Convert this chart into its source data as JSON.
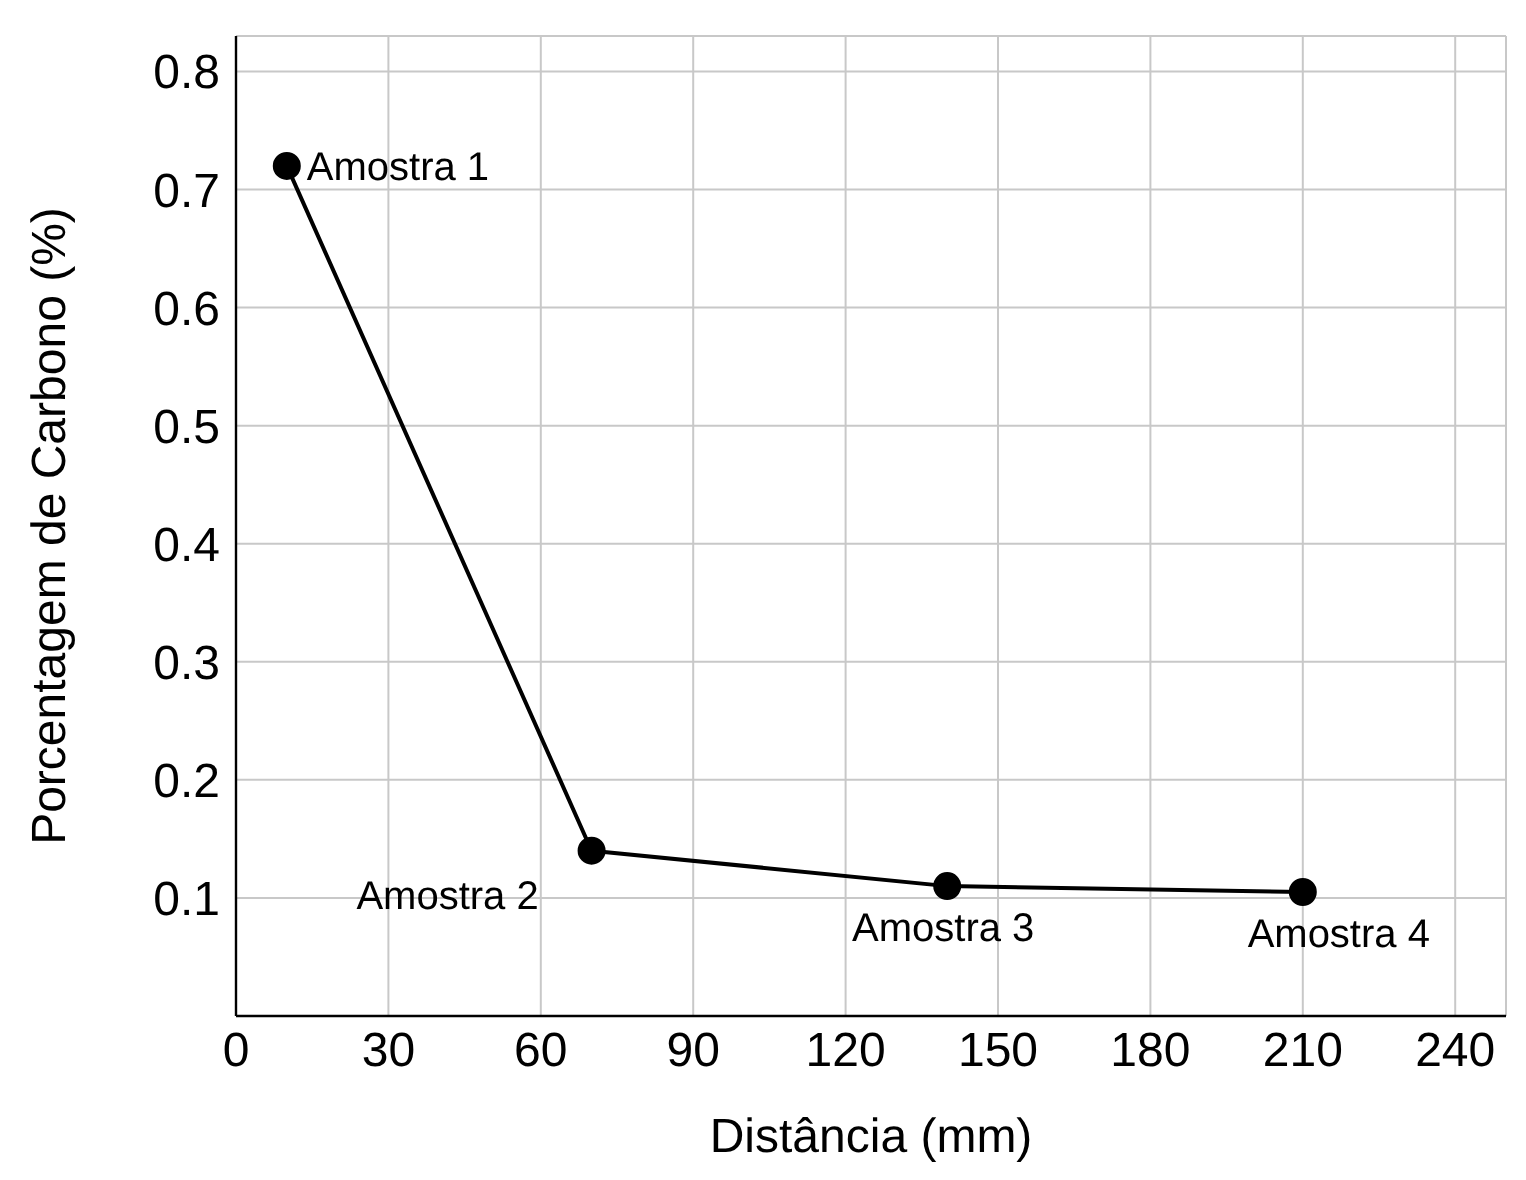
{
  "chart_data": {
    "type": "line",
    "xlabel": "Distância (mm)",
    "ylabel": "Porcentagem de Carbono (%)",
    "x": [
      10,
      70,
      140,
      210
    ],
    "series": [
      {
        "color": "#000000",
        "values": [
          0.72,
          0.14,
          0.11,
          0.105
        ]
      }
    ],
    "xlim": [
      0,
      250
    ],
    "xticks": [
      0,
      30,
      60,
      90,
      120,
      150,
      180,
      210,
      240
    ],
    "ylim": [
      0,
      0.83
    ],
    "yticks": [
      0.1,
      0.2,
      0.3,
      0.4,
      0.5,
      0.6,
      0.7,
      0.8
    ],
    "grid": true,
    "legend": false,
    "marker": "circle",
    "line_style": "solid",
    "annotations": [
      {
        "text": "Amostra 1",
        "x": 10,
        "y": 0.72
      },
      {
        "text": "Amostra 2",
        "x": 70,
        "y": 0.14
      },
      {
        "text": "Amostra 3",
        "x": 140,
        "y": 0.11
      },
      {
        "text": "Amostra 4",
        "x": 210,
        "y": 0.105
      }
    ]
  }
}
